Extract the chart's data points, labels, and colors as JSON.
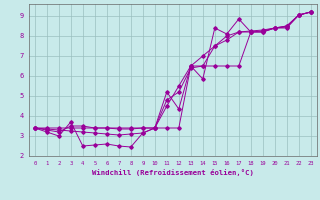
{
  "xlabel": "Windchill (Refroidissement éolien,°C)",
  "bg_color": "#c8eaea",
  "grid_color": "#9bbfbf",
  "line_color": "#990099",
  "xlim": [
    -0.5,
    23.5
  ],
  "ylim": [
    2,
    9.6
  ],
  "xticks": [
    0,
    1,
    2,
    3,
    4,
    5,
    6,
    7,
    8,
    9,
    10,
    11,
    12,
    13,
    14,
    15,
    16,
    17,
    18,
    19,
    20,
    21,
    22,
    23
  ],
  "yticks": [
    2,
    3,
    4,
    5,
    6,
    7,
    8,
    9
  ],
  "series_zigzag": [
    3.4,
    3.2,
    3.0,
    3.7,
    2.5,
    2.55,
    2.6,
    2.5,
    2.45,
    3.15,
    3.4,
    5.2,
    4.35,
    6.5,
    5.85,
    8.4,
    8.1,
    8.85,
    8.2,
    8.2,
    8.4,
    8.5,
    9.05,
    9.2
  ],
  "series_line1": [
    3.4,
    3.4,
    3.4,
    3.4,
    3.4,
    3.4,
    3.4,
    3.4,
    3.4,
    3.4,
    3.4,
    3.4,
    3.4,
    6.5,
    6.5,
    6.5,
    6.5,
    6.5,
    8.2,
    8.2,
    8.4,
    8.4,
    9.05,
    9.2
  ],
  "series_line2": [
    3.4,
    3.35,
    3.3,
    3.25,
    3.2,
    3.15,
    3.1,
    3.05,
    3.1,
    3.15,
    3.4,
    4.5,
    5.5,
    6.5,
    7.0,
    7.5,
    8.0,
    8.2,
    8.25,
    8.3,
    8.4,
    8.5,
    9.05,
    9.2
  ],
  "series_line3": [
    3.4,
    3.3,
    3.2,
    3.5,
    3.5,
    3.4,
    3.4,
    3.35,
    3.35,
    3.4,
    3.4,
    4.8,
    5.2,
    6.4,
    6.5,
    7.5,
    7.8,
    8.2,
    8.2,
    8.25,
    8.4,
    8.45,
    9.05,
    9.2
  ]
}
